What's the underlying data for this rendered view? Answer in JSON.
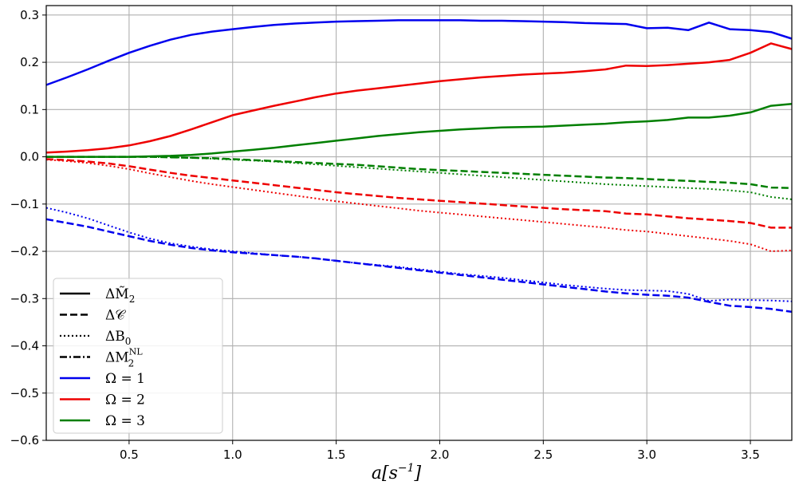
{
  "chart_data": {
    "type": "line",
    "xlabel": "a[s^{-1}]",
    "xlabel_parts": {
      "base": "a[s",
      "sup": "−1",
      "close": "]"
    },
    "xlim": [
      0.1,
      3.7
    ],
    "ylim": [
      -0.6,
      0.32
    ],
    "xticks": [
      0.5,
      1.0,
      1.5,
      2.0,
      2.5,
      3.0,
      3.5
    ],
    "xtick_labels": [
      "0.5",
      "1.0",
      "1.5",
      "2.0",
      "2.5",
      "3.0",
      "3.5"
    ],
    "yticks": [
      0.3,
      0.2,
      0.1,
      0.0,
      -0.1,
      -0.2,
      -0.3,
      -0.4,
      -0.5,
      -0.6
    ],
    "ytick_labels": [
      "0.3",
      "0.2",
      "0.1",
      "0.0",
      "−0.1",
      "−0.2",
      "−0.3",
      "−0.4",
      "−0.5",
      "−0.6"
    ],
    "grid": true,
    "legend_position": "lower-left",
    "legend": [
      {
        "label": "ΔM̃₂",
        "main": "ΔM̃",
        "sub": "2",
        "sup": "",
        "style": "solid",
        "color": "#000000"
      },
      {
        "label": "ΔC",
        "main": "Δ𝒞",
        "sub": "",
        "sup": "",
        "style": "dashed",
        "color": "#000000"
      },
      {
        "label": "ΔB₀",
        "main": "ΔB",
        "sub": "0",
        "sup": "",
        "style": "dotted",
        "color": "#000000"
      },
      {
        "label": "ΔM₂^NL",
        "main": "ΔM",
        "sub": "2",
        "sup": "NL",
        "style": "dashdot",
        "color": "#000000"
      },
      {
        "label": "Ω = 1",
        "main": "Ω = 1",
        "sub": "",
        "sup": "",
        "style": "solid",
        "color": "#0000ee"
      },
      {
        "label": "Ω = 2",
        "main": "Ω = 2",
        "sub": "",
        "sup": "",
        "style": "solid",
        "color": "#ee0000"
      },
      {
        "label": "Ω = 3",
        "main": "Ω = 3",
        "sub": "",
        "sup": "",
        "style": "solid",
        "color": "#007f00"
      }
    ],
    "x": [
      0.1,
      0.2,
      0.3,
      0.4,
      0.5,
      0.6,
      0.7,
      0.8,
      0.9,
      1.0,
      1.1,
      1.2,
      1.3,
      1.4,
      1.5,
      1.6,
      1.7,
      1.8,
      1.9,
      2.0,
      2.1,
      2.2,
      2.3,
      2.4,
      2.5,
      2.6,
      2.7,
      2.8,
      2.9,
      3.0,
      3.1,
      3.2,
      3.3,
      3.4,
      3.5,
      3.6,
      3.7
    ],
    "series": [
      {
        "omega": 1,
        "quantity": "ΔM̃₂",
        "color": "#0000ee",
        "style": "solid",
        "values": [
          0.152,
          0.168,
          0.185,
          0.203,
          0.22,
          0.235,
          0.248,
          0.258,
          0.265,
          0.27,
          0.275,
          0.279,
          0.282,
          0.284,
          0.286,
          0.287,
          0.288,
          0.289,
          0.289,
          0.289,
          0.289,
          0.288,
          0.288,
          0.287,
          0.286,
          0.285,
          0.283,
          0.282,
          0.281,
          0.272,
          0.273,
          0.268,
          0.284,
          0.27,
          0.268,
          0.264,
          0.25
        ]
      },
      {
        "omega": 1,
        "quantity": "ΔC",
        "color": "#0000ee",
        "style": "dashed",
        "values": [
          -0.132,
          -0.14,
          -0.148,
          -0.158,
          -0.168,
          -0.178,
          -0.186,
          -0.193,
          -0.198,
          -0.202,
          -0.205,
          -0.208,
          -0.211,
          -0.215,
          -0.22,
          -0.225,
          -0.23,
          -0.235,
          -0.24,
          -0.245,
          -0.25,
          -0.255,
          -0.26,
          -0.265,
          -0.27,
          -0.275,
          -0.28,
          -0.285,
          -0.289,
          -0.292,
          -0.294,
          -0.298,
          -0.307,
          -0.315,
          -0.318,
          -0.322,
          -0.328
        ]
      },
      {
        "omega": 1,
        "quantity": "ΔB₀",
        "color": "#0000ee",
        "style": "dotted",
        "values": [
          -0.108,
          -0.118,
          -0.13,
          -0.145,
          -0.16,
          -0.173,
          -0.183,
          -0.19,
          -0.196,
          -0.2,
          -0.204,
          -0.208,
          -0.211,
          -0.215,
          -0.22,
          -0.225,
          -0.229,
          -0.233,
          -0.238,
          -0.243,
          -0.248,
          -0.252,
          -0.256,
          -0.261,
          -0.266,
          -0.271,
          -0.275,
          -0.279,
          -0.282,
          -0.283,
          -0.284,
          -0.29,
          -0.305,
          -0.302,
          -0.303,
          -0.304,
          -0.306
        ]
      },
      {
        "omega": 2,
        "quantity": "ΔM̃₂",
        "color": "#ee0000",
        "style": "solid",
        "values": [
          0.009,
          0.011,
          0.014,
          0.018,
          0.024,
          0.033,
          0.044,
          0.058,
          0.073,
          0.088,
          0.098,
          0.108,
          0.117,
          0.126,
          0.134,
          0.14,
          0.145,
          0.15,
          0.155,
          0.16,
          0.164,
          0.168,
          0.171,
          0.174,
          0.176,
          0.178,
          0.181,
          0.185,
          0.193,
          0.192,
          0.194,
          0.197,
          0.2,
          0.205,
          0.22,
          0.24,
          0.228
        ]
      },
      {
        "omega": 2,
        "quantity": "ΔC",
        "color": "#ee0000",
        "style": "dashed",
        "values": [
          -0.005,
          -0.007,
          -0.01,
          -0.014,
          -0.02,
          -0.027,
          -0.034,
          -0.04,
          -0.045,
          -0.05,
          -0.055,
          -0.06,
          -0.065,
          -0.07,
          -0.075,
          -0.079,
          -0.083,
          -0.087,
          -0.09,
          -0.093,
          -0.096,
          -0.099,
          -0.102,
          -0.105,
          -0.108,
          -0.111,
          -0.113,
          -0.115,
          -0.12,
          -0.122,
          -0.126,
          -0.13,
          -0.133,
          -0.136,
          -0.14,
          -0.15,
          -0.15
        ]
      },
      {
        "omega": 2,
        "quantity": "ΔB₀",
        "color": "#ee0000",
        "style": "dotted",
        "values": [
          -0.006,
          -0.009,
          -0.013,
          -0.019,
          -0.026,
          -0.035,
          -0.043,
          -0.051,
          -0.058,
          -0.064,
          -0.07,
          -0.076,
          -0.082,
          -0.088,
          -0.094,
          -0.099,
          -0.104,
          -0.109,
          -0.114,
          -0.118,
          -0.122,
          -0.126,
          -0.13,
          -0.134,
          -0.138,
          -0.142,
          -0.146,
          -0.15,
          -0.155,
          -0.158,
          -0.163,
          -0.168,
          -0.173,
          -0.178,
          -0.185,
          -0.2,
          -0.198
        ]
      },
      {
        "omega": 3,
        "quantity": "ΔM̃₂",
        "color": "#007f00",
        "style": "solid",
        "values": [
          0.0,
          0.0,
          0.0,
          0.0,
          0.0,
          0.001,
          0.002,
          0.004,
          0.007,
          0.011,
          0.015,
          0.019,
          0.024,
          0.029,
          0.034,
          0.039,
          0.044,
          0.048,
          0.052,
          0.055,
          0.058,
          0.06,
          0.062,
          0.063,
          0.064,
          0.066,
          0.068,
          0.07,
          0.073,
          0.075,
          0.078,
          0.083,
          0.083,
          0.087,
          0.094,
          0.108,
          0.112
        ]
      },
      {
        "omega": 3,
        "quantity": "ΔC",
        "color": "#007f00",
        "style": "dashed",
        "values": [
          0.0,
          0.0,
          0.0,
          0.0,
          0.0,
          0.0,
          -0.001,
          -0.002,
          -0.003,
          -0.005,
          -0.007,
          -0.009,
          -0.011,
          -0.013,
          -0.015,
          -0.017,
          -0.02,
          -0.023,
          -0.026,
          -0.028,
          -0.03,
          -0.032,
          -0.034,
          -0.036,
          -0.038,
          -0.04,
          -0.042,
          -0.044,
          -0.045,
          -0.047,
          -0.049,
          -0.051,
          -0.053,
          -0.055,
          -0.058,
          -0.065,
          -0.066
        ]
      },
      {
        "omega": 3,
        "quantity": "ΔB₀",
        "color": "#007f00",
        "style": "dotted",
        "values": [
          0.0,
          0.0,
          0.0,
          0.0,
          0.0,
          0.0,
          -0.001,
          -0.002,
          -0.004,
          -0.006,
          -0.008,
          -0.01,
          -0.013,
          -0.016,
          -0.019,
          -0.022,
          -0.025,
          -0.028,
          -0.031,
          -0.034,
          -0.037,
          -0.04,
          -0.043,
          -0.046,
          -0.049,
          -0.052,
          -0.055,
          -0.058,
          -0.06,
          -0.062,
          -0.064,
          -0.066,
          -0.068,
          -0.071,
          -0.075,
          -0.085,
          -0.09
        ]
      }
    ]
  }
}
